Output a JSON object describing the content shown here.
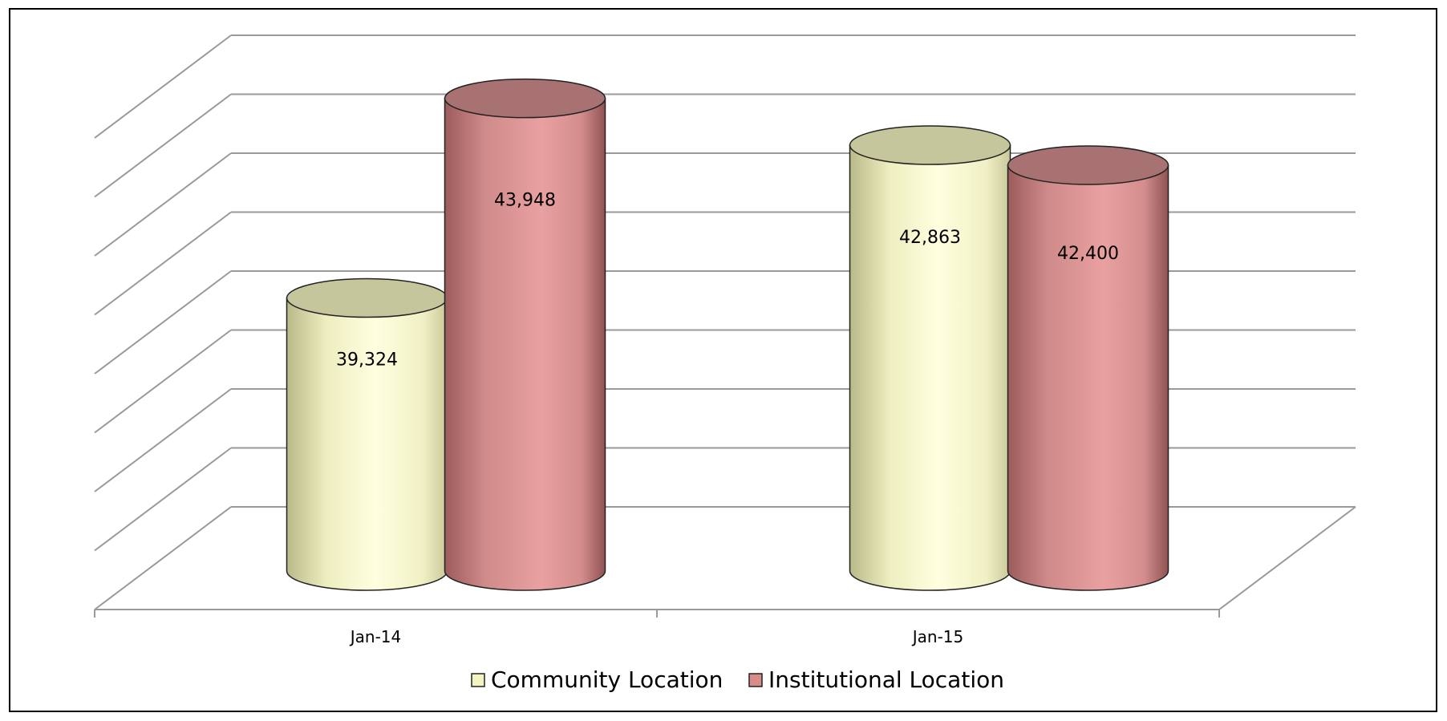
{
  "chart_data": {
    "type": "bar",
    "categories": [
      "Jan-14",
      "Jan-15"
    ],
    "series": [
      {
        "name": "Community Location",
        "values": [
          39324,
          42863
        ],
        "color": "#f4f4c0"
      },
      {
        "name": "Institutional Location",
        "values": [
          43948,
          42400
        ],
        "color": "#d98c8c"
      }
    ],
    "data_labels": [
      [
        "39,324",
        "42,863"
      ],
      [
        "43,948",
        "42,400"
      ]
    ],
    "ylim": [
      33000,
      45000
    ],
    "grid": true,
    "legend_position": "bottom",
    "style": "3d-cylinder"
  }
}
